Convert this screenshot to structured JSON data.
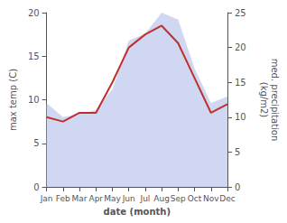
{
  "chart_data": {
    "type": "line",
    "categories": [
      "Jan",
      "Feb",
      "Mar",
      "Apr",
      "May",
      "Jun",
      "Jul",
      "Aug",
      "Sep",
      "Oct",
      "Nov",
      "Dec"
    ],
    "series": [
      {
        "type": "area",
        "color": "#c8d0f0",
        "axis": "y2",
        "values": [
          12.0,
          10.0,
          10.5,
          11.0,
          14.0,
          21.0,
          22.0,
          25.0,
          24.0,
          17.0,
          12.0,
          13.0
        ]
      },
      {
        "type": "line",
        "color": "#c0302a",
        "values": [
          8.0,
          7.5,
          8.5,
          8.5,
          12.0,
          16.0,
          17.5,
          18.5,
          16.5,
          12.5,
          8.5,
          9.5
        ]
      }
    ],
    "xlabel": "date (month)",
    "ylabel": "max temp (C)",
    "y2label": "med. precipitation\n(kg/m2)",
    "ylim": [
      0,
      20
    ],
    "yticks": [
      0,
      5,
      10,
      15,
      20
    ],
    "y2lim": [
      0,
      25
    ],
    "y2ticks": [
      0,
      5,
      10,
      15,
      20,
      25
    ],
    "grid": false
  }
}
